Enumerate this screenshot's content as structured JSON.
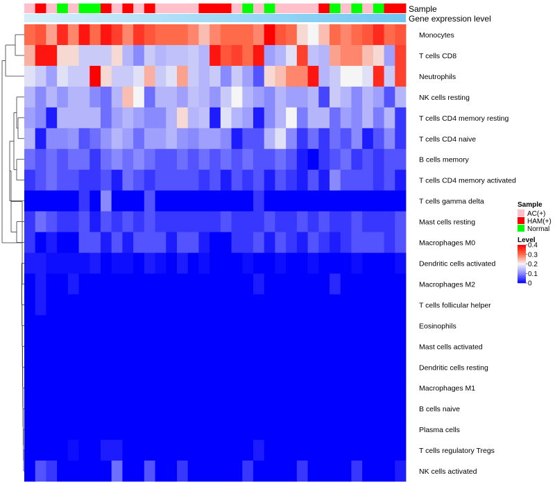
{
  "chart_data": {
    "type": "heatmap",
    "title": "",
    "annotation_tracks": [
      "Sample",
      "Gene expression level"
    ],
    "row_labels": [
      "Monocytes",
      "T cells CD8",
      "Neutrophils",
      "NK cells resting",
      "T cells CD4 memory resting",
      "T cells CD4 naive",
      "B cells memory",
      "T cells CD4 memory activated",
      "T cells gamma delta",
      "Mast cells resting",
      "Macrophages M0",
      "Dendritic cells activated",
      "Macrophages M2",
      "T cells follicular helper",
      "Eosinophils",
      "Mast cells activated",
      "Dendritic cells resting",
      "Macrophages M1",
      "B cells naive",
      "Plasma cells",
      "T cells regulatory  Tregs",
      "NK cells activated"
    ],
    "sample_groups": [
      "AC(+)",
      "HAM(+)",
      "AC(+)",
      "Normal",
      "AC(+)",
      "Normal",
      "Normal",
      "HAM(+)",
      "AC(+)",
      "HAM(+)",
      "AC(+)",
      "HAM(+)",
      "AC(+)",
      "AC(+)",
      "AC(+)",
      "AC(+)",
      "HAM(+)",
      "HAM(+)",
      "HAM(+)",
      "AC(+)",
      "Normal",
      "AC(+)",
      "Normal",
      "AC(+)",
      "AC(+)",
      "AC(+)",
      "AC(+)",
      "HAM(+)",
      "Normal",
      "AC(+)",
      "Normal",
      "AC(+)",
      "Normal",
      "HAM(+)",
      "HAM(+)"
    ],
    "values": [
      [
        0.3,
        0.32,
        0.26,
        0.36,
        0.28,
        0.38,
        0.3,
        0.38,
        0.34,
        0.28,
        0.35,
        0.32,
        0.3,
        0.3,
        0.3,
        0.28,
        0.24,
        0.28,
        0.3,
        0.3,
        0.3,
        0.28,
        0.4,
        0.32,
        0.3,
        0.22,
        0.2,
        0.24,
        0.3,
        0.28,
        0.3,
        0.32,
        0.36,
        0.3,
        0.32
      ],
      [
        0.25,
        0.38,
        0.38,
        0.22,
        0.22,
        0.16,
        0.16,
        0.16,
        0.22,
        0.14,
        0.1,
        0.16,
        0.14,
        0.15,
        0.15,
        0.16,
        0.14,
        0.38,
        0.32,
        0.34,
        0.3,
        0.38,
        0.12,
        0.14,
        0.18,
        0.34,
        0.15,
        0.14,
        0.26,
        0.28,
        0.28,
        0.24,
        0.22,
        0.12,
        0.34
      ],
      [
        0.18,
        0.16,
        0.12,
        0.18,
        0.16,
        0.16,
        0.4,
        0.22,
        0.16,
        0.16,
        0.18,
        0.25,
        0.16,
        0.18,
        0.26,
        0.16,
        0.14,
        0.16,
        0.1,
        0.16,
        0.12,
        0.06,
        0.22,
        0.24,
        0.28,
        0.28,
        0.38,
        0.14,
        0.16,
        0.2,
        0.2,
        0.18,
        0.36,
        0.16,
        0.34
      ],
      [
        0.14,
        0.1,
        0.14,
        0.11,
        0.14,
        0.14,
        0.1,
        0.08,
        0.14,
        0.24,
        0.2,
        0.08,
        0.14,
        0.14,
        0.12,
        0.15,
        0.14,
        0.11,
        0.16,
        0.2,
        0.14,
        0.12,
        0.1,
        0.14,
        0.12,
        0.12,
        0.14,
        0.05,
        0.16,
        0.14,
        0.1,
        0.14,
        0.12,
        0.06,
        0.14
      ],
      [
        0.12,
        0.1,
        0.02,
        0.14,
        0.14,
        0.14,
        0.14,
        0.08,
        0.12,
        0.14,
        0.12,
        0.1,
        0.1,
        0.14,
        0.22,
        0.14,
        0.15,
        0.02,
        0.18,
        0.14,
        0.12,
        0.02,
        0.1,
        0.14,
        0.2,
        0.09,
        0.14,
        0.14,
        0.08,
        0.12,
        0.1,
        0.14,
        0.09,
        0.14,
        0.04
      ],
      [
        0.14,
        0.02,
        0.1,
        0.1,
        0.11,
        0.06,
        0.08,
        0.11,
        0.14,
        0.12,
        0.08,
        0.12,
        0.12,
        0.14,
        0.11,
        0.1,
        0.12,
        0.12,
        0.1,
        0.02,
        0.06,
        0.06,
        0.14,
        0.18,
        0.1,
        0.04,
        0.08,
        0.04,
        0.08,
        0.06,
        0.1,
        0.02,
        0.06,
        0.1,
        0.04
      ],
      [
        0.08,
        0.06,
        0.08,
        0.06,
        0.08,
        0.08,
        0.04,
        0.08,
        0.1,
        0.08,
        0.1,
        0.08,
        0.06,
        0.06,
        0.08,
        0.06,
        0.08,
        0.06,
        0.08,
        0.06,
        0.08,
        0.06,
        0.06,
        0.08,
        0.06,
        0.02,
        0.0,
        0.04,
        0.06,
        0.08,
        0.04,
        0.06,
        0.04,
        0.06,
        0.06
      ],
      [
        0.04,
        0.06,
        0.08,
        0.06,
        0.06,
        0.04,
        0.04,
        0.06,
        0.02,
        0.08,
        0.06,
        0.04,
        0.06,
        0.06,
        0.06,
        0.06,
        0.04,
        0.06,
        0.02,
        0.06,
        0.04,
        0.06,
        0.02,
        0.06,
        0.04,
        0.02,
        0.06,
        0.02,
        0.1,
        0.06,
        0.06,
        0.06,
        0.04,
        0.06,
        0.02
      ],
      [
        0.0,
        0.0,
        0.0,
        0.0,
        0.0,
        0.04,
        0.0,
        0.1,
        0.0,
        0.0,
        0.0,
        0.06,
        0.0,
        0.0,
        0.0,
        0.0,
        0.0,
        0.0,
        0.0,
        0.0,
        0.0,
        0.04,
        0.0,
        0.0,
        0.0,
        0.0,
        0.0,
        0.0,
        0.0,
        0.0,
        0.0,
        0.0,
        0.0,
        0.0,
        0.0
      ],
      [
        0.04,
        0.08,
        0.06,
        0.04,
        0.04,
        0.06,
        0.02,
        0.06,
        0.04,
        0.06,
        0.04,
        0.06,
        0.04,
        0.04,
        0.04,
        0.04,
        0.04,
        0.04,
        0.06,
        0.04,
        0.04,
        0.04,
        0.06,
        0.04,
        0.04,
        0.06,
        0.04,
        0.06,
        0.04,
        0.04,
        0.06,
        0.04,
        0.04,
        0.04,
        0.06
      ],
      [
        0.04,
        0.0,
        0.02,
        0.0,
        0.0,
        0.06,
        0.06,
        0.02,
        0.06,
        0.02,
        0.06,
        0.06,
        0.06,
        0.02,
        0.06,
        0.06,
        0.02,
        0.0,
        0.0,
        0.04,
        0.04,
        0.06,
        0.02,
        0.06,
        0.04,
        0.02,
        0.06,
        0.04,
        0.02,
        0.04,
        0.06,
        0.06,
        0.06,
        0.04,
        0.06
      ],
      [
        0.02,
        0.02,
        0.01,
        0.01,
        0.01,
        0.01,
        0.02,
        0.0,
        0.01,
        0.01,
        0.0,
        0.02,
        0.01,
        0.0,
        0.02,
        0.0,
        0.01,
        0.0,
        0.0,
        0.0,
        0.01,
        0.0,
        0.0,
        0.01,
        0.0,
        0.0,
        0.01,
        0.0,
        0.0,
        0.0,
        0.01,
        0.0,
        0.0,
        0.0,
        0.01
      ],
      [
        0.0,
        0.02,
        0.0,
        0.0,
        0.02,
        0.0,
        0.0,
        0.0,
        0.0,
        0.0,
        0.0,
        0.0,
        0.0,
        0.0,
        0.0,
        0.0,
        0.0,
        0.0,
        0.0,
        0.0,
        0.0,
        0.02,
        0.0,
        0.0,
        0.0,
        0.0,
        0.0,
        0.0,
        0.03,
        0.0,
        0.0,
        0.0,
        0.0,
        0.0,
        0.0
      ],
      [
        0.0,
        0.02,
        0.0,
        0.0,
        0.0,
        0.0,
        0.0,
        0.0,
        0.0,
        0.0,
        0.0,
        0.0,
        0.0,
        0.0,
        0.0,
        0.0,
        0.0,
        0.0,
        0.0,
        0.0,
        0.0,
        0.0,
        0.0,
        0.0,
        0.0,
        0.0,
        0.0,
        0.0,
        0.0,
        0.0,
        0.0,
        0.0,
        0.0,
        0.0,
        0.0
      ],
      [
        0.0,
        0.0,
        0.0,
        0.0,
        0.0,
        0.0,
        0.0,
        0.0,
        0.0,
        0.0,
        0.0,
        0.0,
        0.0,
        0.0,
        0.0,
        0.0,
        0.0,
        0.0,
        0.0,
        0.0,
        0.0,
        0.0,
        0.0,
        0.0,
        0.0,
        0.0,
        0.0,
        0.0,
        0.0,
        0.0,
        0.0,
        0.0,
        0.0,
        0.0,
        0.0
      ],
      [
        0.0,
        0.0,
        0.0,
        0.0,
        0.0,
        0.0,
        0.0,
        0.0,
        0.0,
        0.0,
        0.0,
        0.0,
        0.0,
        0.0,
        0.0,
        0.0,
        0.0,
        0.0,
        0.0,
        0.0,
        0.0,
        0.0,
        0.0,
        0.0,
        0.0,
        0.0,
        0.0,
        0.0,
        0.0,
        0.0,
        0.0,
        0.0,
        0.0,
        0.0,
        0.0
      ],
      [
        0.0,
        0.0,
        0.0,
        0.0,
        0.0,
        0.0,
        0.0,
        0.0,
        0.0,
        0.0,
        0.0,
        0.0,
        0.0,
        0.0,
        0.0,
        0.0,
        0.0,
        0.0,
        0.0,
        0.0,
        0.0,
        0.0,
        0.0,
        0.0,
        0.0,
        0.0,
        0.0,
        0.0,
        0.0,
        0.0,
        0.0,
        0.0,
        0.0,
        0.0,
        0.0
      ],
      [
        0.0,
        0.0,
        0.0,
        0.0,
        0.0,
        0.0,
        0.0,
        0.0,
        0.0,
        0.0,
        0.0,
        0.0,
        0.0,
        0.0,
        0.0,
        0.0,
        0.0,
        0.0,
        0.0,
        0.0,
        0.0,
        0.0,
        0.0,
        0.0,
        0.0,
        0.0,
        0.0,
        0.0,
        0.0,
        0.0,
        0.0,
        0.0,
        0.0,
        0.0,
        0.0
      ],
      [
        0.0,
        0.0,
        0.0,
        0.0,
        0.0,
        0.0,
        0.0,
        0.0,
        0.0,
        0.0,
        0.0,
        0.0,
        0.0,
        0.0,
        0.0,
        0.0,
        0.0,
        0.0,
        0.0,
        0.0,
        0.0,
        0.0,
        0.0,
        0.0,
        0.0,
        0.0,
        0.0,
        0.0,
        0.0,
        0.0,
        0.0,
        0.0,
        0.0,
        0.0,
        0.0
      ],
      [
        0.0,
        0.0,
        0.0,
        0.0,
        0.0,
        0.0,
        0.0,
        0.0,
        0.0,
        0.0,
        0.0,
        0.0,
        0.0,
        0.0,
        0.0,
        0.0,
        0.0,
        0.0,
        0.0,
        0.0,
        0.0,
        0.0,
        0.0,
        0.0,
        0.0,
        0.0,
        0.0,
        0.0,
        0.0,
        0.0,
        0.0,
        0.0,
        0.0,
        0.0,
        0.0
      ],
      [
        0.0,
        0.0,
        0.0,
        0.0,
        0.01,
        0.0,
        0.0,
        0.02,
        0.02,
        0.0,
        0.0,
        0.0,
        0.0,
        0.0,
        0.0,
        0.0,
        0.0,
        0.0,
        0.0,
        0.0,
        0.0,
        0.02,
        0.0,
        0.0,
        0.0,
        0.0,
        0.0,
        0.0,
        0.0,
        0.0,
        0.0,
        0.0,
        0.0,
        0.0,
        0.0
      ],
      [
        0.0,
        0.06,
        0.04,
        0.0,
        0.0,
        0.0,
        0.0,
        0.0,
        0.08,
        0.0,
        0.0,
        0.06,
        0.0,
        0.0,
        0.04,
        0.0,
        0.0,
        0.0,
        0.0,
        0.0,
        0.04,
        0.0,
        0.0,
        0.0,
        0.0,
        0.04,
        0.0,
        0.0,
        0.0,
        0.0,
        0.04,
        0.0,
        0.0,
        0.0,
        0.02
      ]
    ],
    "color_scale": {
      "stops": [
        0,
        0.1,
        0.2,
        0.3,
        0.4
      ],
      "colors": [
        "#0000ff",
        "#8a8aff",
        "#f5f5f5",
        "#ff6a4a",
        "#ff0000"
      ]
    },
    "legend": {
      "sample_title": "Sample",
      "entries": [
        {
          "label": "AC(+)",
          "color": "#ffc0cb"
        },
        {
          "label": "HAM(+)",
          "color": "#ff0000"
        },
        {
          "label": "Normal",
          "color": "#00ff00"
        }
      ],
      "level_title": "Level",
      "level_ticks": [
        "0.4",
        "0.3",
        "0.2",
        "0.1",
        "0"
      ],
      "placement": "right"
    },
    "expression_track_colors": [
      "#d6eefa",
      "#6fc6f2"
    ]
  }
}
